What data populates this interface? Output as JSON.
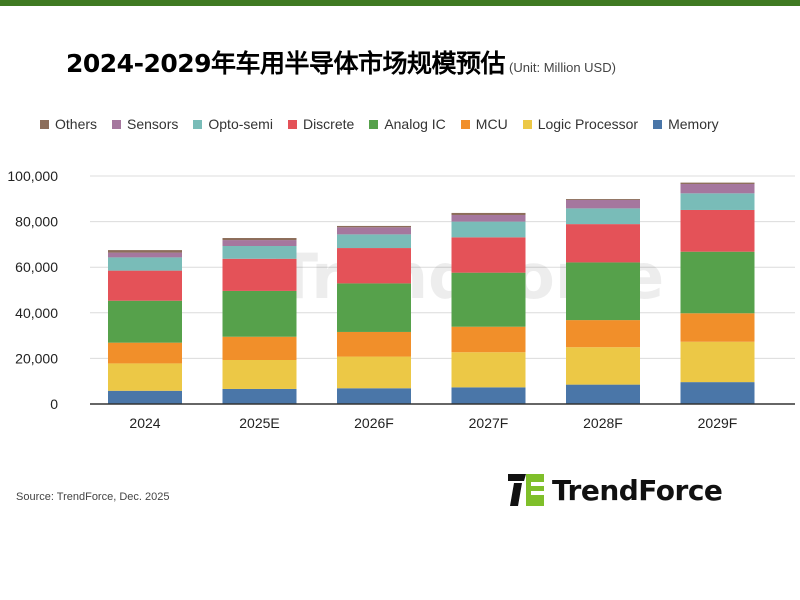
{
  "title": "2024-2029年车用半导体市场规模预估",
  "unit": "(Unit: Million USD)",
  "source": "Source: TrendForce, Dec.  2025",
  "logo_text": "TrendForce",
  "colors": {
    "topbar": "#3f7a22"
  },
  "legend": [
    {
      "name": "Others",
      "color": "#8c6d5a"
    },
    {
      "name": "Sensors",
      "color": "#a5779e"
    },
    {
      "name": "Opto-semi",
      "color": "#79bcb8"
    },
    {
      "name": "Discrete",
      "color": "#e45258"
    },
    {
      "name": "Analog IC",
      "color": "#56a14b"
    },
    {
      "name": "MCU",
      "color": "#f18f2a"
    },
    {
      "name": "Logic Processor",
      "color": "#ecc846"
    },
    {
      "name": "Memory",
      "color": "#4a76a8"
    }
  ],
  "chart_data": {
    "type": "bar",
    "stacked": true,
    "title": "2024-2029年车用半导体市场规模预估",
    "unit": "(Unit: Million USD)",
    "categories": [
      "2024",
      "2025E",
      "2026F",
      "2027F",
      "2028F",
      "2029F"
    ],
    "ylim": [
      0,
      100000
    ],
    "yticks": [
      "0",
      "20,000",
      "40,000",
      "60,000",
      "80,000",
      "100,000"
    ],
    "grid": true,
    "legend_position": "top",
    "series": [
      {
        "name": "Memory",
        "color": "#4a76a8",
        "values": [
          5800,
          6600,
          6900,
          7300,
          8500,
          9600
        ]
      },
      {
        "name": "Logic Processor",
        "color": "#ecc846",
        "values": [
          12000,
          12700,
          13900,
          15400,
          16400,
          17700
        ]
      },
      {
        "name": "MCU",
        "color": "#f18f2a",
        "values": [
          9100,
          10200,
          10800,
          11200,
          11900,
          12500
        ]
      },
      {
        "name": "Analog IC",
        "color": "#56a14b",
        "values": [
          18400,
          20100,
          21300,
          23700,
          25300,
          27000
        ]
      },
      {
        "name": "Discrete",
        "color": "#e45258",
        "values": [
          13200,
          14100,
          15500,
          15500,
          16800,
          18300
        ]
      },
      {
        "name": "Opto-semi",
        "color": "#79bcb8",
        "values": [
          5800,
          5600,
          6000,
          6900,
          6900,
          7300
        ]
      },
      {
        "name": "Sensors",
        "color": "#a5779e",
        "values": [
          2100,
          2600,
          3100,
          2900,
          3700,
          4100
        ]
      },
      {
        "name": "Others",
        "color": "#8c6d5a",
        "values": [
          1100,
          900,
          600,
          900,
          400,
          600
        ]
      }
    ]
  }
}
